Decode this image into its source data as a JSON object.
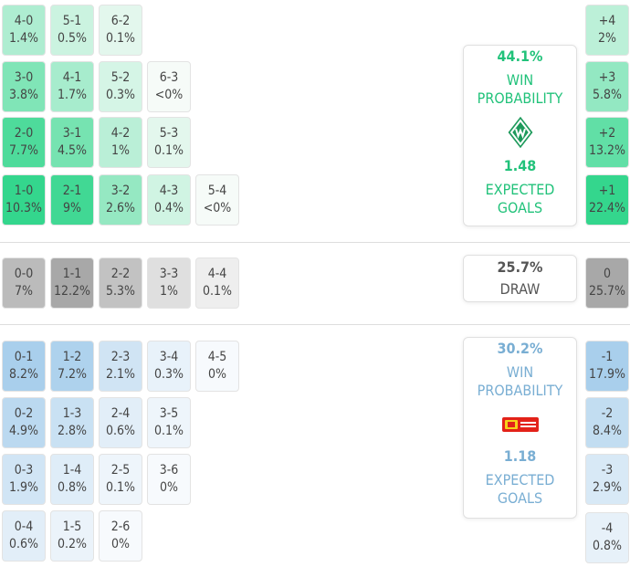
{
  "home_scores": [
    {
      "score": "4-0",
      "pct": "1.4%"
    },
    {
      "score": "5-1",
      "pct": "0.5%"
    },
    {
      "score": "6-2",
      "pct": "0.1%"
    },
    {
      "score": "3-0",
      "pct": "3.8%"
    },
    {
      "score": "4-1",
      "pct": "1.7%"
    },
    {
      "score": "5-2",
      "pct": "0.3%"
    },
    {
      "score": "6-3",
      "pct": "<0%"
    },
    {
      "score": "2-0",
      "pct": "7.7%"
    },
    {
      "score": "3-1",
      "pct": "4.5%"
    },
    {
      "score": "4-2",
      "pct": "1%"
    },
    {
      "score": "5-3",
      "pct": "0.1%"
    },
    {
      "score": "1-0",
      "pct": "10.3%"
    },
    {
      "score": "2-1",
      "pct": "9%"
    },
    {
      "score": "3-2",
      "pct": "2.6%"
    },
    {
      "score": "4-3",
      "pct": "0.4%"
    },
    {
      "score": "5-4",
      "pct": "<0%"
    }
  ],
  "draw_scores": [
    {
      "score": "0-0",
      "pct": "7%"
    },
    {
      "score": "1-1",
      "pct": "12.2%"
    },
    {
      "score": "2-2",
      "pct": "5.3%"
    },
    {
      "score": "3-3",
      "pct": "1%"
    },
    {
      "score": "4-4",
      "pct": "0.1%"
    }
  ],
  "away_scores": [
    {
      "score": "0-1",
      "pct": "8.2%"
    },
    {
      "score": "1-2",
      "pct": "7.2%"
    },
    {
      "score": "2-3",
      "pct": "2.1%"
    },
    {
      "score": "3-4",
      "pct": "0.3%"
    },
    {
      "score": "4-5",
      "pct": "0%"
    },
    {
      "score": "0-2",
      "pct": "4.9%"
    },
    {
      "score": "1-3",
      "pct": "2.8%"
    },
    {
      "score": "2-4",
      "pct": "0.6%"
    },
    {
      "score": "3-5",
      "pct": "0.1%"
    },
    {
      "score": "0-3",
      "pct": "1.9%"
    },
    {
      "score": "1-4",
      "pct": "0.8%"
    },
    {
      "score": "2-5",
      "pct": "0.1%"
    },
    {
      "score": "3-6",
      "pct": "0%"
    },
    {
      "score": "0-4",
      "pct": "0.6%"
    },
    {
      "score": "1-5",
      "pct": "0.2%"
    },
    {
      "score": "2-6",
      "pct": "0%"
    }
  ],
  "margins": [
    {
      "margin": "+4",
      "pct": "2%"
    },
    {
      "margin": "+3",
      "pct": "5.8%"
    },
    {
      "margin": "+2",
      "pct": "13.2%"
    },
    {
      "margin": "+1",
      "pct": "22.4%"
    },
    {
      "margin": "0",
      "pct": "25.7%"
    },
    {
      "margin": "-1",
      "pct": "17.9%"
    },
    {
      "margin": "-2",
      "pct": "8.4%"
    },
    {
      "margin": "-3",
      "pct": "2.9%"
    },
    {
      "margin": "-4",
      "pct": "0.8%"
    }
  ],
  "home_card": {
    "win_pct": "44.1%",
    "win_label_1": "WIN",
    "win_label_2": "PROBABILITY",
    "xg": "1.48",
    "xg_label_1": "EXPECTED",
    "xg_label_2": "GOALS",
    "crest_icon": "werder-bremen-crest-icon"
  },
  "draw_card": {
    "pct": "25.7%",
    "label": "DRAW"
  },
  "away_card": {
    "win_pct": "30.2%",
    "win_label_1": "WIN",
    "win_label_2": "PROBABILITY",
    "xg": "1.18",
    "xg_label_1": "EXPECTED",
    "xg_label_2": "GOALS",
    "crest_icon": "union-berlin-crest-icon"
  },
  "colors": {
    "home_accent": "#21c27a",
    "away_accent": "#79aed3",
    "draw_accent": "#555555"
  }
}
